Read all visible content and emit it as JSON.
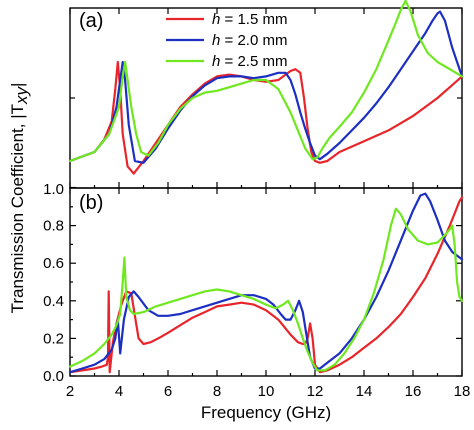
{
  "chart_data": [
    {
      "panel_label": "(a)",
      "type": "line",
      "ylabel": "Transmission Coefficient, |T",
      "ylabel_sub": "xy",
      "ylabel_end": "|",
      "ylim": [
        0,
        1.0
      ],
      "yticks": [
        "1.0"
      ],
      "xlim": [
        2,
        18
      ],
      "grid": false,
      "legend_position": "top-center",
      "series": [
        {
          "name": "h = 1.5 mm",
          "prefix": "h",
          "suffix": " = 1.5 mm",
          "color": "#e8252a",
          "x": [
            2,
            3,
            3.4,
            3.7,
            3.85,
            3.95,
            4.05,
            4.15,
            4.35,
            4.6,
            5,
            5.5,
            6,
            6.5,
            7,
            7.5,
            8,
            8.5,
            9,
            9.5,
            10,
            10.5,
            11,
            11.2,
            11.4,
            11.55,
            11.7,
            11.85,
            12,
            12.2,
            12.5,
            13,
            13.5,
            14,
            14.5,
            15,
            15.5,
            16,
            16.5,
            17,
            17.5,
            18
          ],
          "y": [
            0.15,
            0.2,
            0.27,
            0.37,
            0.55,
            0.7,
            0.55,
            0.3,
            0.12,
            0.08,
            0.15,
            0.25,
            0.35,
            0.45,
            0.52,
            0.58,
            0.62,
            0.63,
            0.62,
            0.6,
            0.59,
            0.6,
            0.65,
            0.66,
            0.64,
            0.5,
            0.33,
            0.2,
            0.15,
            0.14,
            0.15,
            0.2,
            0.23,
            0.26,
            0.29,
            0.32,
            0.36,
            0.4,
            0.45,
            0.5,
            0.56,
            0.62
          ]
        },
        {
          "name": "h = 2.0 mm",
          "prefix": "h",
          "suffix": " = 2.0 mm",
          "color": "#1c2fc2",
          "x": [
            2,
            3,
            3.6,
            3.9,
            4.05,
            4.15,
            4.25,
            4.4,
            4.65,
            5,
            5.5,
            6,
            6.5,
            7,
            7.5,
            8,
            8.5,
            9,
            9.5,
            10,
            10.5,
            10.8,
            11,
            11.2,
            11.4,
            11.6,
            11.8,
            12,
            12.2,
            12.5,
            13,
            13.5,
            14,
            14.5,
            15,
            15.5,
            16,
            16.5,
            16.8,
            17,
            17.1,
            17.3,
            17.6,
            18
          ],
          "y": [
            0.15,
            0.2,
            0.3,
            0.45,
            0.6,
            0.7,
            0.6,
            0.35,
            0.15,
            0.14,
            0.22,
            0.33,
            0.43,
            0.51,
            0.57,
            0.61,
            0.62,
            0.62,
            0.61,
            0.62,
            0.64,
            0.64,
            0.6,
            0.52,
            0.42,
            0.33,
            0.25,
            0.18,
            0.16,
            0.19,
            0.25,
            0.32,
            0.39,
            0.47,
            0.56,
            0.66,
            0.76,
            0.86,
            0.93,
            0.97,
            0.98,
            0.93,
            0.78,
            0.62
          ]
        },
        {
          "name": "h = 2.5 mm",
          "prefix": "h",
          "suffix": " = 2.5 mm",
          "color": "#6fe820",
          "x": [
            2,
            3,
            3.6,
            4,
            4.15,
            4.25,
            4.35,
            4.5,
            4.7,
            4.9,
            5.2,
            5.6,
            6,
            6.5,
            7,
            7.5,
            8,
            8.5,
            9,
            9.5,
            10,
            10.5,
            11,
            11.3,
            11.6,
            11.9,
            12.1,
            12.3,
            12.6,
            13,
            13.5,
            14,
            14.5,
            15,
            15.3,
            15.5,
            15.7,
            15.9,
            16.2,
            16.6,
            17,
            17.5,
            18
          ],
          "y": [
            0.15,
            0.2,
            0.3,
            0.45,
            0.62,
            0.7,
            0.6,
            0.45,
            0.3,
            0.2,
            0.18,
            0.25,
            0.35,
            0.44,
            0.5,
            0.53,
            0.54,
            0.56,
            0.58,
            0.6,
            0.6,
            0.55,
            0.42,
            0.32,
            0.22,
            0.16,
            0.17,
            0.22,
            0.28,
            0.34,
            0.42,
            0.53,
            0.66,
            0.82,
            0.92,
            0.99,
            1.04,
            0.98,
            0.85,
            0.75,
            0.7,
            0.66,
            0.62
          ]
        }
      ]
    },
    {
      "panel_label": "(b)",
      "type": "line",
      "xlabel": "Frequency (GHz)",
      "xlim": [
        2,
        18
      ],
      "ylim": [
        0,
        1.0
      ],
      "xticks": [
        2,
        4,
        6,
        8,
        10,
        12,
        14,
        16,
        18
      ],
      "yticks": [
        0.0,
        0.2,
        0.4,
        0.6,
        0.8
      ],
      "grid": false,
      "series": [
        {
          "color": "#e8252a",
          "x": [
            2,
            2.5,
            3,
            3.3,
            3.5,
            3.55,
            3.58,
            3.62,
            3.75,
            3.9,
            4.1,
            4.3,
            4.5,
            4.65,
            4.8,
            5,
            5.3,
            5.6,
            6,
            6.5,
            7,
            7.5,
            8,
            8.5,
            9,
            9.5,
            10,
            10.5,
            11,
            11.3,
            11.5,
            11.6,
            11.7,
            11.8,
            11.9,
            12,
            12.2,
            12.5,
            13,
            13.5,
            14,
            14.5,
            15,
            15.5,
            16,
            16.5,
            17,
            17.5,
            17.9,
            18
          ],
          "y": [
            0.02,
            0.03,
            0.04,
            0.05,
            0.06,
            0.1,
            0.45,
            0.02,
            0.18,
            0.28,
            0.38,
            0.45,
            0.44,
            0.32,
            0.2,
            0.17,
            0.18,
            0.2,
            0.23,
            0.27,
            0.31,
            0.34,
            0.37,
            0.38,
            0.39,
            0.38,
            0.35,
            0.3,
            0.22,
            0.18,
            0.17,
            0.17,
            0.2,
            0.28,
            0.2,
            0.06,
            0.02,
            0.03,
            0.06,
            0.1,
            0.15,
            0.2,
            0.26,
            0.33,
            0.42,
            0.52,
            0.65,
            0.8,
            0.93,
            0.95
          ]
        },
        {
          "color": "#1c2fc2",
          "x": [
            2,
            2.5,
            3,
            3.4,
            3.7,
            3.85,
            3.95,
            4.05,
            4.2,
            4.4,
            4.6,
            4.8,
            5.2,
            5.6,
            6,
            6.5,
            7,
            7.5,
            8,
            8.5,
            9,
            9.5,
            10,
            10.3,
            10.6,
            10.8,
            11,
            11.2,
            11.35,
            11.5,
            11.65,
            11.8,
            12,
            12.2,
            12.5,
            13,
            13.5,
            14,
            14.5,
            15,
            15.5,
            16,
            16.3,
            16.5,
            16.7,
            17,
            17.3,
            17.6,
            18
          ],
          "y": [
            0.02,
            0.04,
            0.06,
            0.09,
            0.14,
            0.2,
            0.3,
            0.12,
            0.3,
            0.42,
            0.45,
            0.42,
            0.35,
            0.32,
            0.32,
            0.33,
            0.35,
            0.37,
            0.39,
            0.41,
            0.43,
            0.43,
            0.41,
            0.38,
            0.33,
            0.3,
            0.3,
            0.35,
            0.4,
            0.34,
            0.22,
            0.1,
            0.04,
            0.04,
            0.07,
            0.12,
            0.2,
            0.3,
            0.42,
            0.56,
            0.72,
            0.88,
            0.96,
            0.97,
            0.93,
            0.83,
            0.72,
            0.66,
            0.62
          ]
        },
        {
          "color": "#6fe820",
          "x": [
            2,
            2.5,
            3,
            3.4,
            3.7,
            3.9,
            4.05,
            4.15,
            4.22,
            4.3,
            4.45,
            4.6,
            5,
            5.5,
            6,
            6.5,
            7,
            7.5,
            8,
            8.5,
            9,
            9.5,
            10,
            10.4,
            10.7,
            10.9,
            11.1,
            11.3,
            11.5,
            11.7,
            11.9,
            12.1,
            12.4,
            12.8,
            13.2,
            13.6,
            14,
            14.4,
            14.8,
            15.1,
            15.3,
            15.5,
            15.8,
            16.2,
            16.6,
            17,
            17.3,
            17.5,
            17.6,
            17.7,
            17.8,
            17.9,
            18
          ],
          "y": [
            0.05,
            0.08,
            0.12,
            0.17,
            0.22,
            0.27,
            0.33,
            0.5,
            0.63,
            0.42,
            0.35,
            0.33,
            0.34,
            0.37,
            0.39,
            0.41,
            0.43,
            0.45,
            0.46,
            0.45,
            0.43,
            0.41,
            0.38,
            0.36,
            0.38,
            0.4,
            0.35,
            0.28,
            0.2,
            0.13,
            0.07,
            0.03,
            0.03,
            0.06,
            0.12,
            0.2,
            0.3,
            0.44,
            0.62,
            0.8,
            0.89,
            0.86,
            0.78,
            0.72,
            0.7,
            0.71,
            0.75,
            0.78,
            0.8,
            0.7,
            0.5,
            0.42,
            0.4
          ]
        }
      ]
    }
  ]
}
